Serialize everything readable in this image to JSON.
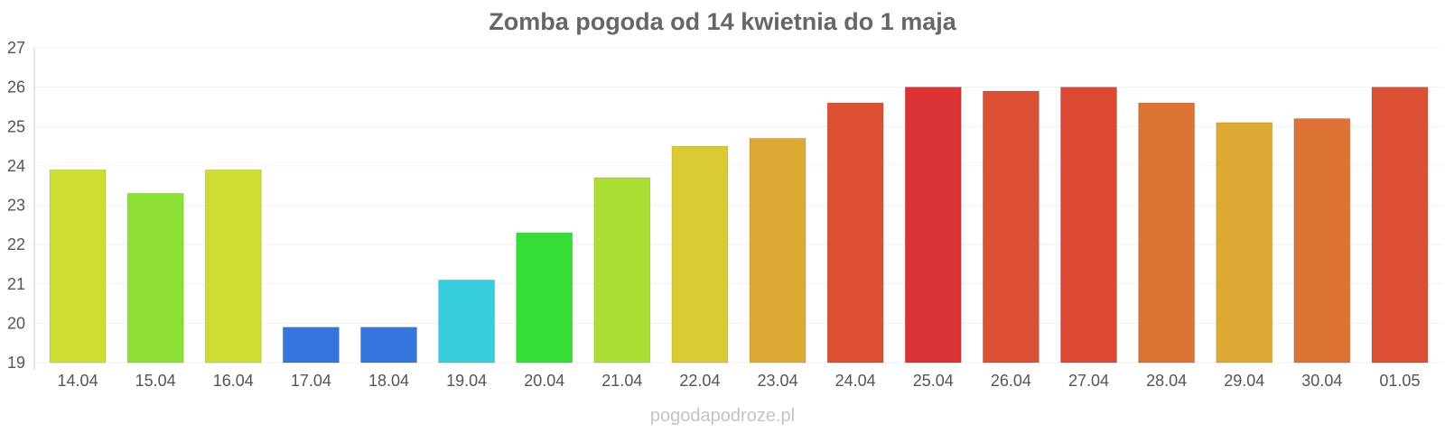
{
  "chart_data": {
    "type": "bar",
    "title": "Zomba pogoda od 14 kwietnia do 1 maja",
    "xlabel": "",
    "ylabel": "",
    "ylim": [
      19,
      27
    ],
    "yticks": [
      19,
      20,
      21,
      22,
      23,
      24,
      25,
      26,
      27
    ],
    "grid": true,
    "legend": "none",
    "categories": [
      "14.04",
      "15.04",
      "16.04",
      "17.04",
      "18.04",
      "19.04",
      "20.04",
      "21.04",
      "22.04",
      "23.04",
      "24.04",
      "25.04",
      "26.04",
      "27.04",
      "28.04",
      "29.04",
      "30.04",
      "01.05"
    ],
    "values": [
      23.9,
      23.3,
      23.9,
      19.9,
      19.9,
      21.1,
      22.3,
      23.7,
      24.5,
      24.7,
      25.6,
      26.0,
      25.9,
      26.0,
      25.6,
      25.1,
      25.2,
      26.0
    ],
    "colors": [
      "#cedd33",
      "#8ce033",
      "#cedd33",
      "#3575dc",
      "#3575dc",
      "#36cddd",
      "#37dd37",
      "#aade33",
      "#dbcb32",
      "#dcaa32",
      "#dc5034",
      "#dc3434",
      "#dc5034",
      "#dc4834",
      "#dc7234",
      "#dcaa32",
      "#dc7234",
      "#dc5034"
    ],
    "source": "pogodapodroze.pl"
  }
}
